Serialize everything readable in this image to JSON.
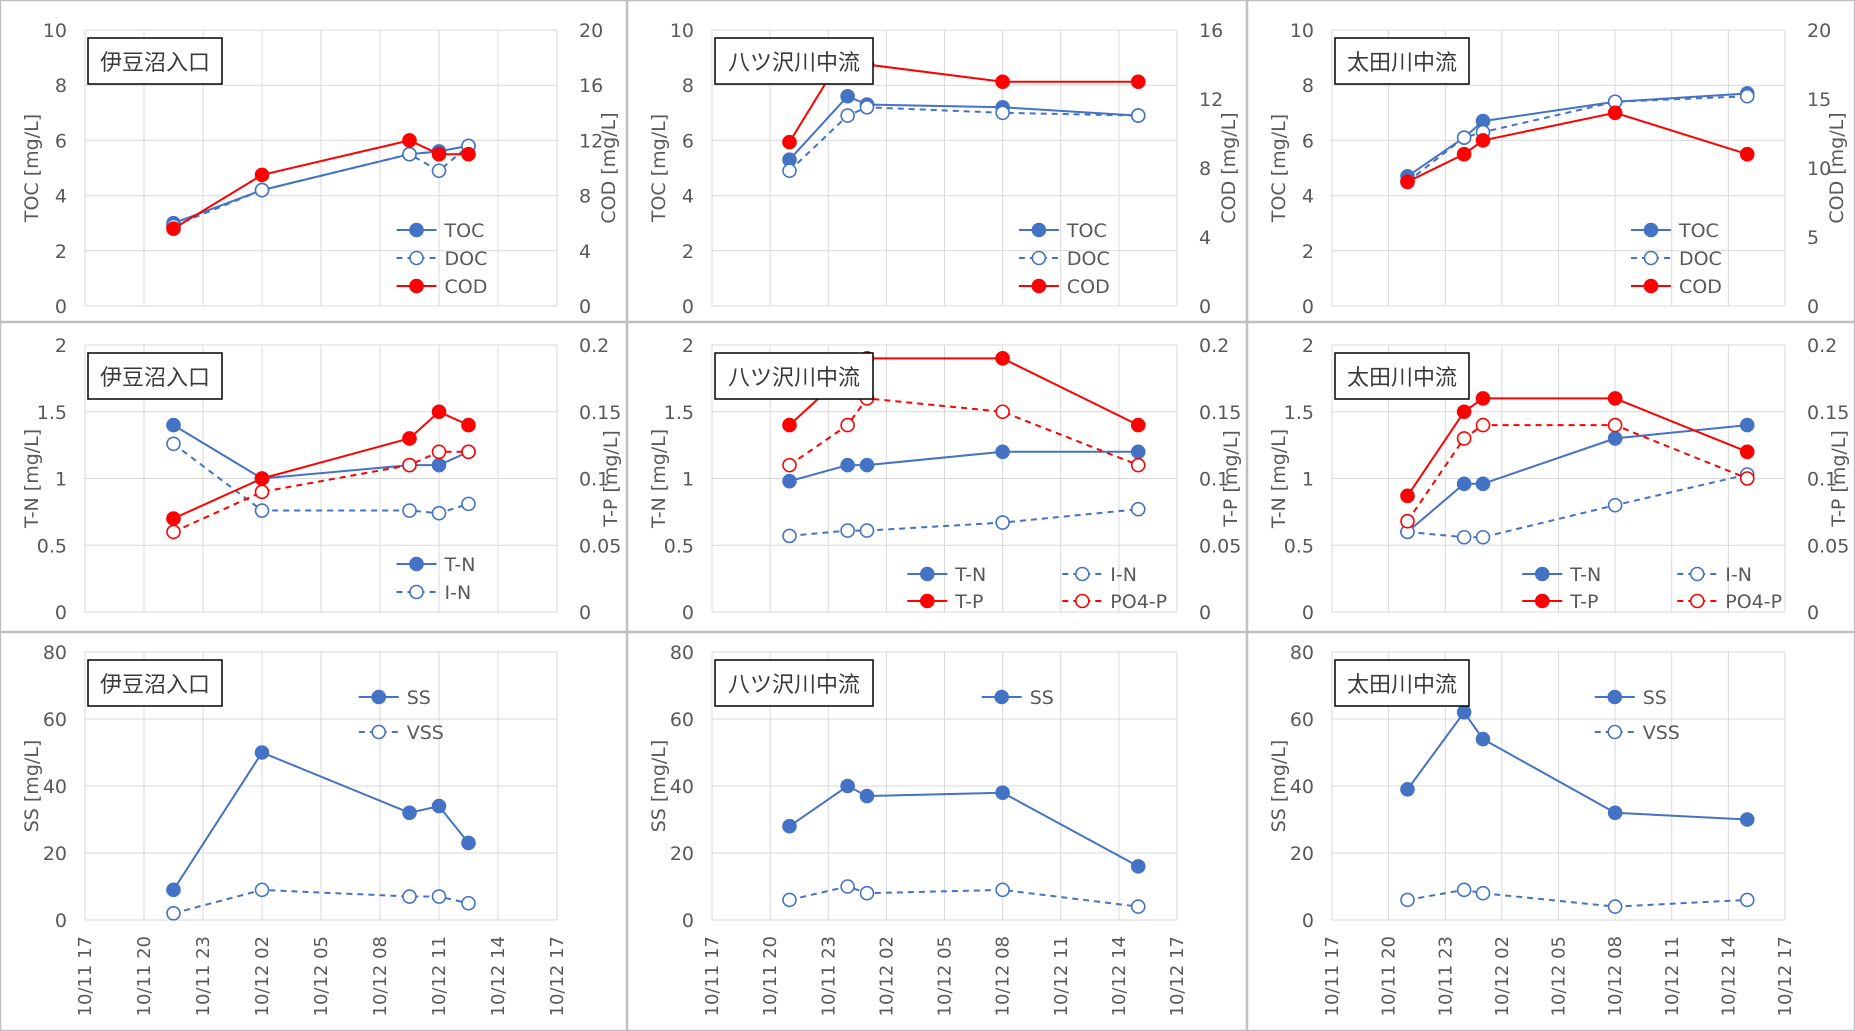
{
  "colors": {
    "blue": "#4472C4",
    "red": "#FF0000",
    "grid": "#D9D9D9",
    "axis": "#595959",
    "border": "#BFBFBF"
  },
  "x_ticks": [
    "10/11 17",
    "10/11 20",
    "10/11 23",
    "10/12 02",
    "10/12 05",
    "10/12 08",
    "10/12 11",
    "10/12 14",
    "10/12 17"
  ],
  "chart_data": [
    {
      "type": "line",
      "panel": "row1-col1",
      "title": "伊豆沼入口",
      "ylabel": "TOC [mg/L]",
      "ylim": [
        0,
        10
      ],
      "yticks": [
        "0",
        "2",
        "4",
        "6",
        "8",
        "10"
      ],
      "y2label": "COD [mg/L]",
      "y2lim": [
        0,
        20
      ],
      "y2ticks": [
        "0",
        "4",
        "8",
        "12",
        "16",
        "20"
      ],
      "legend": {
        "position": "bottom-right",
        "layout": "stack",
        "entries": [
          "TOC",
          "DOC",
          "COD"
        ]
      },
      "series": [
        {
          "name": "TOC",
          "axis": "left",
          "color": "blue",
          "dash": false,
          "filled": true,
          "x": [
            "10/11 21:30",
            "10/12 02:00",
            "10/12 09:30",
            "10/12 11:00",
            "10/12 12:30"
          ],
          "values": [
            3.0,
            4.2,
            5.5,
            5.6,
            5.8
          ]
        },
        {
          "name": "DOC",
          "axis": "left",
          "color": "blue",
          "dash": true,
          "filled": false,
          "x": [
            "10/11 21:30",
            "10/12 02:00",
            "10/12 09:30",
            "10/12 11:00",
            "10/12 12:30"
          ],
          "values": [
            2.9,
            4.2,
            5.5,
            4.9,
            5.8
          ]
        },
        {
          "name": "COD",
          "axis": "right",
          "color": "red",
          "dash": false,
          "filled": true,
          "x": [
            "10/11 21:30",
            "10/12 02:00",
            "10/12 09:30",
            "10/12 11:00",
            "10/12 12:30"
          ],
          "values": [
            5.6,
            9.5,
            12.0,
            11.0,
            11.0
          ]
        }
      ]
    },
    {
      "type": "line",
      "panel": "row1-col2",
      "title": "八ツ沢川中流",
      "ylabel": "TOC [mg/L]",
      "ylim": [
        0,
        10
      ],
      "yticks": [
        "0",
        "2",
        "4",
        "6",
        "8",
        "10"
      ],
      "y2label": "COD [mg/L]",
      "y2lim": [
        0,
        16
      ],
      "y2ticks": [
        "0",
        "4",
        "8",
        "12",
        "16"
      ],
      "legend": {
        "position": "bottom-right",
        "layout": "stack",
        "entries": [
          "TOC",
          "DOC",
          "COD"
        ]
      },
      "series": [
        {
          "name": "TOC",
          "axis": "left",
          "color": "blue",
          "dash": false,
          "filled": true,
          "x": [
            "10/11 21:00",
            "10/12 00:00",
            "10/12 01:00",
            "10/12 08:00",
            "10/12 15:00"
          ],
          "values": [
            5.3,
            7.6,
            7.3,
            7.2,
            6.9
          ]
        },
        {
          "name": "DOC",
          "axis": "left",
          "color": "blue",
          "dash": true,
          "filled": false,
          "x": [
            "10/11 21:00",
            "10/12 00:00",
            "10/12 01:00",
            "10/12 08:00",
            "10/12 15:00"
          ],
          "values": [
            4.9,
            6.9,
            7.2,
            7.0,
            6.9
          ]
        },
        {
          "name": "COD",
          "axis": "right",
          "color": "red",
          "dash": false,
          "filled": true,
          "x": [
            "10/11 21:00",
            "10/12 00:00",
            "10/12 01:00",
            "10/12 08:00",
            "10/12 15:00"
          ],
          "values": [
            9.5,
            15.0,
            14.0,
            13.0,
            13.0
          ]
        }
      ]
    },
    {
      "type": "line",
      "panel": "row1-col3",
      "title": "太田川中流",
      "ylabel": "TOC [mg/L]",
      "ylim": [
        0,
        10
      ],
      "yticks": [
        "0",
        "2",
        "4",
        "6",
        "8",
        "10"
      ],
      "y2label": "COD [mg/L]",
      "y2lim": [
        0,
        20
      ],
      "y2ticks": [
        "0",
        "5",
        "10",
        "15",
        "20"
      ],
      "legend": {
        "position": "bottom-right",
        "layout": "stack",
        "entries": [
          "TOC",
          "DOC",
          "COD"
        ]
      },
      "series": [
        {
          "name": "TOC",
          "axis": "left",
          "color": "blue",
          "dash": false,
          "filled": true,
          "x": [
            "10/11 21:00",
            "10/12 00:00",
            "10/12 01:00",
            "10/12 08:00",
            "10/12 15:00"
          ],
          "values": [
            4.7,
            6.1,
            6.7,
            7.4,
            7.7
          ]
        },
        {
          "name": "DOC",
          "axis": "left",
          "color": "blue",
          "dash": true,
          "filled": false,
          "x": [
            "10/11 21:00",
            "10/12 00:00",
            "10/12 01:00",
            "10/12 08:00",
            "10/12 15:00"
          ],
          "values": [
            4.5,
            6.1,
            6.3,
            7.4,
            7.6
          ]
        },
        {
          "name": "COD",
          "axis": "right",
          "color": "red",
          "dash": false,
          "filled": true,
          "x": [
            "10/11 21:00",
            "10/12 00:00",
            "10/12 01:00",
            "10/12 08:00",
            "10/12 15:00"
          ],
          "values": [
            9.0,
            11.0,
            12.0,
            14.0,
            11.0
          ]
        }
      ]
    },
    {
      "type": "line",
      "panel": "row2-col1",
      "title": "伊豆沼入口",
      "ylabel": "T-N [mg/L]",
      "ylim": [
        0,
        2
      ],
      "yticks": [
        "0",
        "0.5",
        "1",
        "1.5",
        "2"
      ],
      "y2label": "T-P [mg/L]",
      "y2lim": [
        0,
        0.2
      ],
      "y2ticks": [
        "0",
        "0.05",
        "0.1",
        "0.15",
        "0.2"
      ],
      "legend": {
        "position": "bottom-right",
        "layout": "stack",
        "entries": [
          "T-N",
          "I-N"
        ]
      },
      "series": [
        {
          "name": "T-N",
          "axis": "left",
          "color": "blue",
          "dash": false,
          "filled": true,
          "x": [
            "10/11 21:30",
            "10/12 02:00",
            "10/12 09:30",
            "10/12 11:00",
            "10/12 12:30"
          ],
          "values": [
            1.4,
            1.0,
            1.1,
            1.1,
            1.2
          ]
        },
        {
          "name": "I-N",
          "axis": "left",
          "color": "blue",
          "dash": true,
          "filled": false,
          "x": [
            "10/11 21:30",
            "10/12 02:00",
            "10/12 09:30",
            "10/12 11:00",
            "10/12 12:30"
          ],
          "values": [
            1.26,
            0.76,
            0.76,
            0.74,
            0.81
          ]
        },
        {
          "axis": "right",
          "color": "red",
          "dash": false,
          "filled": true,
          "x": [
            "10/11 21:30",
            "10/12 02:00",
            "10/12 09:30",
            "10/12 11:00",
            "10/12 12:30"
          ],
          "values": [
            0.07,
            0.1,
            0.13,
            0.15,
            0.14
          ]
        },
        {
          "axis": "right",
          "color": "red",
          "dash": true,
          "filled": false,
          "x": [
            "10/11 21:30",
            "10/12 02:00",
            "10/12 09:30",
            "10/12 11:00",
            "10/12 12:30"
          ],
          "values": [
            0.06,
            0.09,
            0.11,
            0.12,
            0.12
          ]
        }
      ]
    },
    {
      "type": "line",
      "panel": "row2-col2",
      "title": "八ツ沢川中流",
      "ylabel": "T-N [mg/L]",
      "ylim": [
        0,
        2
      ],
      "yticks": [
        "0",
        "0.5",
        "1",
        "1.5",
        "2"
      ],
      "y2label": "T-P [mg/L]",
      "y2lim": [
        0,
        0.2
      ],
      "y2ticks": [
        "0",
        "0.05",
        "0.1",
        "0.15",
        "0.2"
      ],
      "legend": {
        "position": "bottom-right",
        "layout": "grid",
        "entries": [
          "T-N",
          "I-N",
          "T-P",
          "PO4-P"
        ]
      },
      "series": [
        {
          "name": "T-N",
          "axis": "left",
          "color": "blue",
          "dash": false,
          "filled": true,
          "x": [
            "10/11 21:00",
            "10/12 00:00",
            "10/12 01:00",
            "10/12 08:00",
            "10/12 15:00"
          ],
          "values": [
            0.98,
            1.1,
            1.1,
            1.2,
            1.2
          ]
        },
        {
          "name": "I-N",
          "axis": "left",
          "color": "blue",
          "dash": true,
          "filled": false,
          "x": [
            "10/11 21:00",
            "10/12 00:00",
            "10/12 01:00",
            "10/12 08:00",
            "10/12 15:00"
          ],
          "values": [
            0.57,
            0.61,
            0.61,
            0.67,
            0.77
          ]
        },
        {
          "name": "T-P",
          "axis": "right",
          "color": "red",
          "dash": false,
          "filled": true,
          "x": [
            "10/11 21:00",
            "10/12 00:00",
            "10/12 01:00",
            "10/12 08:00",
            "10/12 15:00"
          ],
          "values": [
            0.14,
            0.18,
            0.19,
            0.19,
            0.14
          ]
        },
        {
          "name": "PO4-P",
          "axis": "right",
          "color": "red",
          "dash": true,
          "filled": false,
          "x": [
            "10/11 21:00",
            "10/12 00:00",
            "10/12 01:00",
            "10/12 08:00",
            "10/12 15:00"
          ],
          "values": [
            0.11,
            0.14,
            0.16,
            0.15,
            0.11
          ]
        }
      ]
    },
    {
      "type": "line",
      "panel": "row2-col3",
      "title": "太田川中流",
      "ylabel": "T-N [mg/L]",
      "ylim": [
        0,
        2
      ],
      "yticks": [
        "0",
        "0.5",
        "1",
        "1.5",
        "2"
      ],
      "y2label": "T-P [mg/L]",
      "y2lim": [
        0,
        0.2
      ],
      "y2ticks": [
        "0",
        "0.05",
        "0.1",
        "0.15",
        "0.2"
      ],
      "legend": {
        "position": "bottom-right",
        "layout": "grid",
        "entries": [
          "T-N",
          "I-N",
          "T-P",
          "PO4-P"
        ]
      },
      "series": [
        {
          "name": "T-N",
          "axis": "left",
          "color": "blue",
          "dash": false,
          "filled": true,
          "x": [
            "10/11 21:00",
            "10/12 00:00",
            "10/12 01:00",
            "10/12 08:00",
            "10/12 15:00"
          ],
          "values": [
            0.6,
            0.96,
            0.96,
            1.3,
            1.4
          ]
        },
        {
          "name": "I-N",
          "axis": "left",
          "color": "blue",
          "dash": true,
          "filled": false,
          "x": [
            "10/11 21:00",
            "10/12 00:00",
            "10/12 01:00",
            "10/12 08:00",
            "10/12 15:00"
          ],
          "values": [
            0.6,
            0.56,
            0.56,
            0.8,
            1.03
          ]
        },
        {
          "name": "T-P",
          "axis": "right",
          "color": "red",
          "dash": false,
          "filled": true,
          "x": [
            "10/11 21:00",
            "10/12 00:00",
            "10/12 01:00",
            "10/12 08:00",
            "10/12 15:00"
          ],
          "values": [
            0.087,
            0.15,
            0.16,
            0.16,
            0.12
          ]
        },
        {
          "name": "PO4-P",
          "axis": "right",
          "color": "red",
          "dash": true,
          "filled": false,
          "x": [
            "10/11 21:00",
            "10/12 00:00",
            "10/12 01:00",
            "10/12 08:00",
            "10/12 15:00"
          ],
          "values": [
            0.068,
            0.13,
            0.14,
            0.14,
            0.1
          ]
        }
      ]
    },
    {
      "type": "line",
      "panel": "row3-col1",
      "title": "伊豆沼入口",
      "ylabel": "SS [mg/L]",
      "ylim": [
        0,
        80
      ],
      "yticks": [
        "0",
        "20",
        "40",
        "60",
        "80"
      ],
      "legend": {
        "position": "top-right",
        "layout": "stack",
        "entries": [
          "SS",
          "VSS"
        ]
      },
      "xlabels": true,
      "series": [
        {
          "name": "SS",
          "axis": "left",
          "color": "blue",
          "dash": false,
          "filled": true,
          "x": [
            "10/11 21:30",
            "10/12 02:00",
            "10/12 09:30",
            "10/12 11:00",
            "10/12 12:30"
          ],
          "values": [
            9,
            50,
            32,
            34,
            23
          ]
        },
        {
          "name": "VSS",
          "axis": "left",
          "color": "blue",
          "dash": true,
          "filled": false,
          "x": [
            "10/11 21:30",
            "10/12 02:00",
            "10/12 09:30",
            "10/12 11:00",
            "10/12 12:30"
          ],
          "values": [
            2,
            9,
            7,
            7,
            5
          ]
        }
      ]
    },
    {
      "type": "line",
      "panel": "row3-col2",
      "title": "八ツ沢川中流",
      "ylabel": "SS [mg/L]",
      "ylim": [
        0,
        80
      ],
      "yticks": [
        "0",
        "20",
        "40",
        "60",
        "80"
      ],
      "legend": {
        "position": "top-right",
        "layout": "stack",
        "entries": [
          "SS"
        ]
      },
      "xlabels": true,
      "series": [
        {
          "name": "SS",
          "axis": "left",
          "color": "blue",
          "dash": false,
          "filled": true,
          "x": [
            "10/11 21:00",
            "10/12 00:00",
            "10/12 01:00",
            "10/12 08:00",
            "10/12 15:00"
          ],
          "values": [
            28,
            40,
            37,
            38,
            16
          ]
        },
        {
          "axis": "left",
          "color": "blue",
          "dash": true,
          "filled": false,
          "x": [
            "10/11 21:00",
            "10/12 00:00",
            "10/12 01:00",
            "10/12 08:00",
            "10/12 15:00"
          ],
          "values": [
            6,
            10,
            8,
            9,
            4
          ]
        }
      ]
    },
    {
      "type": "line",
      "panel": "row3-col3",
      "title": "太田川中流",
      "ylabel": "SS [mg/L]",
      "ylim": [
        0,
        80
      ],
      "yticks": [
        "0",
        "20",
        "40",
        "60",
        "80"
      ],
      "legend": {
        "position": "top-right",
        "layout": "stack",
        "entries": [
          "SS",
          "VSS"
        ]
      },
      "xlabels": true,
      "series": [
        {
          "name": "SS",
          "axis": "left",
          "color": "blue",
          "dash": false,
          "filled": true,
          "x": [
            "10/11 21:00",
            "10/12 00:00",
            "10/12 01:00",
            "10/12 08:00",
            "10/12 15:00"
          ],
          "values": [
            39,
            62,
            54,
            32,
            30
          ]
        },
        {
          "name": "VSS",
          "axis": "left",
          "color": "blue",
          "dash": true,
          "filled": false,
          "x": [
            "10/11 21:00",
            "10/12 00:00",
            "10/12 01:00",
            "10/12 08:00",
            "10/12 15:00"
          ],
          "values": [
            6,
            9,
            8,
            4,
            6
          ]
        }
      ]
    }
  ]
}
